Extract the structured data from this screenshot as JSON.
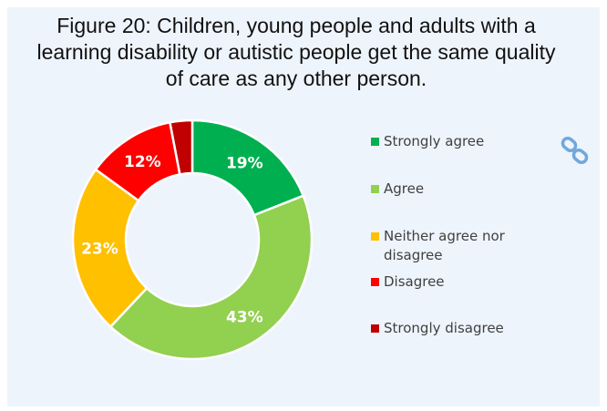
{
  "title": "Figure 20: Children, young people and adults with a learning disability or autistic people get the same quality of care as any other person.",
  "chart_data": {
    "type": "pie",
    "variant": "donut",
    "title": "Figure 20: Children, young people and adults with a learning disability or autistic people get the same quality of care as any other person.",
    "categories": [
      "Strongly agree",
      "Agree",
      "Neither agree nor disagree",
      "Disagree",
      "Strongly disagree"
    ],
    "values": [
      19,
      43,
      23,
      12,
      3
    ],
    "data_labels": [
      "19%",
      "43%",
      "23%",
      "12%",
      ""
    ],
    "colors": [
      "#00b050",
      "#92d050",
      "#ffc000",
      "#ff0000",
      "#c00000"
    ],
    "legend_position": "right"
  },
  "icons": {
    "link": "link-icon"
  }
}
